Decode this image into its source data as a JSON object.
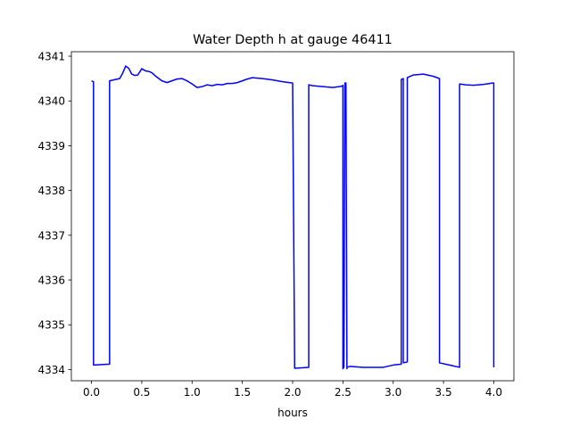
{
  "chart_data": {
    "type": "line",
    "title": "Water Depth h at gauge 46411",
    "xlabel": "hours",
    "ylabel": "",
    "xlim": [
      -0.2,
      4.2
    ],
    "ylim": [
      4333.75,
      4341.1
    ],
    "xticks": [
      0.0,
      0.5,
      1.0,
      1.5,
      2.0,
      2.5,
      3.0,
      3.5,
      4.0
    ],
    "xtick_labels": [
      "0.0",
      "0.5",
      "1.0",
      "1.5",
      "2.0",
      "2.5",
      "3.0",
      "3.5",
      "4.0"
    ],
    "yticks": [
      4334,
      4335,
      4336,
      4337,
      4338,
      4339,
      4340,
      4341
    ],
    "ytick_labels": [
      "4334",
      "4335",
      "4336",
      "4337",
      "4338",
      "4339",
      "4340",
      "4341"
    ],
    "grid": false,
    "legend": "none",
    "series": [
      {
        "color": "#0000ff",
        "x": [
          0.0,
          0.02,
          0.02,
          0.18,
          0.18,
          0.28,
          0.31,
          0.34,
          0.37,
          0.4,
          0.43,
          0.46,
          0.5,
          0.54,
          0.57,
          0.6,
          0.64,
          0.7,
          0.75,
          0.8,
          0.85,
          0.9,
          0.95,
          1.0,
          1.05,
          1.1,
          1.15,
          1.2,
          1.25,
          1.3,
          1.35,
          1.4,
          1.45,
          1.5,
          1.55,
          1.6,
          1.7,
          1.8,
          1.9,
          2.0,
          2.02,
          2.02,
          2.16,
          2.16,
          2.2,
          2.3,
          2.4,
          2.49,
          2.5,
          2.5,
          2.51,
          2.52,
          2.53,
          2.54,
          2.54,
          2.57,
          2.7,
          2.9,
          3.0,
          3.08,
          3.08,
          3.1,
          3.1,
          3.14,
          3.14,
          3.2,
          3.3,
          3.4,
          3.46,
          3.46,
          3.66,
          3.66,
          3.72,
          3.8,
          3.9,
          3.99,
          4.0,
          4.0
        ],
        "y": [
          4340.45,
          4340.43,
          4334.1,
          4334.12,
          4340.45,
          4340.5,
          4340.62,
          4340.78,
          4340.73,
          4340.6,
          4340.57,
          4340.58,
          4340.72,
          4340.67,
          4340.66,
          4340.63,
          4340.55,
          4340.45,
          4340.41,
          4340.45,
          4340.49,
          4340.5,
          4340.45,
          4340.38,
          4340.3,
          4340.32,
          4340.36,
          4340.34,
          4340.37,
          4340.36,
          4340.39,
          4340.39,
          4340.41,
          4340.45,
          4340.49,
          4340.52,
          4340.5,
          4340.47,
          4340.43,
          4340.4,
          4334.12,
          4334.03,
          4334.05,
          4340.36,
          4340.34,
          4340.32,
          4340.3,
          4340.33,
          4340.35,
          4334.02,
          4334.05,
          4340.4,
          4340.4,
          4334.02,
          4334.05,
          4334.07,
          4334.05,
          4334.05,
          4334.1,
          4334.12,
          4340.48,
          4340.5,
          4334.15,
          4334.17,
          4340.52,
          4340.58,
          4340.6,
          4340.55,
          4340.5,
          4334.15,
          4334.05,
          4340.38,
          4340.36,
          4340.35,
          4340.37,
          4340.4,
          4340.4,
          4334.05
        ]
      }
    ]
  }
}
